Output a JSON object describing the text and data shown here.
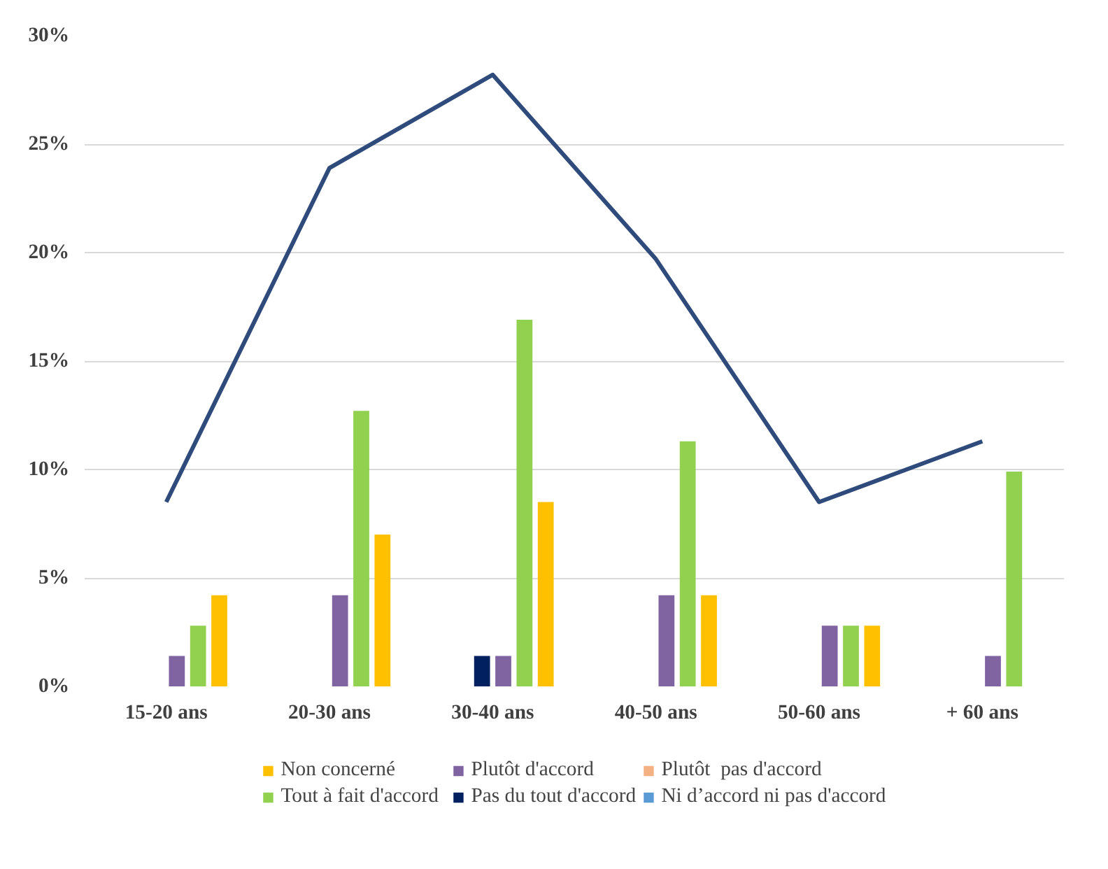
{
  "chart_data": {
    "type": "bar",
    "categories": [
      "15-20 ans",
      "20-30 ans",
      "30-40 ans",
      "40-50 ans",
      "50-60 ans",
      "+ 60 ans"
    ],
    "series": [
      {
        "name": "Non concerné",
        "color": "#ffc000",
        "values": [
          4.2,
          7.0,
          8.5,
          4.2,
          2.8,
          0
        ]
      },
      {
        "name": "Plutôt d'accord",
        "color": "#8064a2",
        "values": [
          1.4,
          4.2,
          1.4,
          4.2,
          2.8,
          1.4
        ]
      },
      {
        "name": "Plutôt  pas d'accord",
        "color": "#f4b183",
        "values": [
          0,
          0,
          0,
          0,
          0,
          0
        ]
      },
      {
        "name": "Tout à fait d'accord",
        "color": "#92d050",
        "values": [
          2.8,
          12.7,
          16.9,
          11.3,
          2.8,
          9.9
        ]
      },
      {
        "name": "Pas du tout d'accord",
        "color": "#002060",
        "values": [
          0,
          0,
          1.4,
          0,
          0,
          0
        ]
      },
      {
        "name": "Ni d’accord ni pas d'accord",
        "color": "#5b9bd5",
        "values": [
          0,
          0,
          0,
          0,
          0,
          0
        ]
      },
      {
        "type": "line",
        "color": "#2f4b7c",
        "values": [
          8.5,
          23.9,
          28.2,
          19.7,
          8.5,
          11.3
        ]
      }
    ],
    "ylim": [
      0,
      30
    ],
    "yticks": [
      {
        "value": 0,
        "label": "0%"
      },
      {
        "value": 5,
        "label": "5%"
      },
      {
        "value": 10,
        "label": "10%"
      },
      {
        "value": 15,
        "label": "15%"
      },
      {
        "value": 20,
        "label": "20%"
      },
      {
        "value": 25,
        "label": "25%"
      },
      {
        "value": 30,
        "label": "30%"
      }
    ],
    "grid": "y",
    "legend": "bottom",
    "marker": "none",
    "line_style": "solid"
  }
}
